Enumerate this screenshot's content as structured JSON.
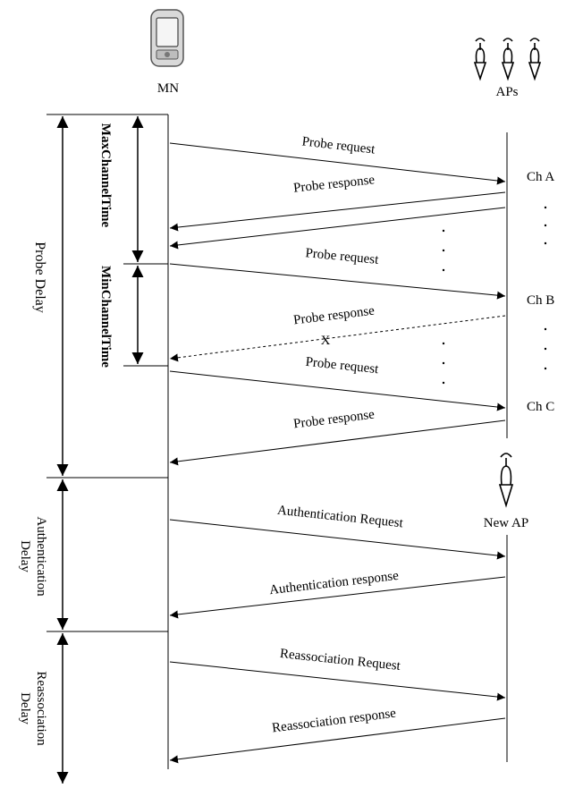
{
  "nodes": {
    "mn_label": "MN",
    "aps_label": "APs",
    "new_ap_label": "New AP"
  },
  "channels": [
    "Ch A",
    "Ch B",
    "Ch C"
  ],
  "delays": {
    "probe": "Probe Delay",
    "authentication_line1": "Authentication",
    "authentication_line2": "Delay",
    "reassociation_line1": "Reassociation",
    "reassociation_line2": "Delay"
  },
  "timers": {
    "max": "MaxChannelTime",
    "min": "MinChannelTime"
  },
  "messages": {
    "probe_request_1": "Probe request",
    "probe_response_1": "Probe response",
    "probe_request_2": "Probe request",
    "probe_response_2": "Probe response",
    "lost_marker": "X",
    "probe_request_3": "Probe request",
    "probe_response_3": "Probe response",
    "auth_request": "Authentication Request",
    "auth_response": "Authentication response",
    "reassoc_request": "Reassociation Request",
    "reassoc_response": "Reassociation response"
  }
}
